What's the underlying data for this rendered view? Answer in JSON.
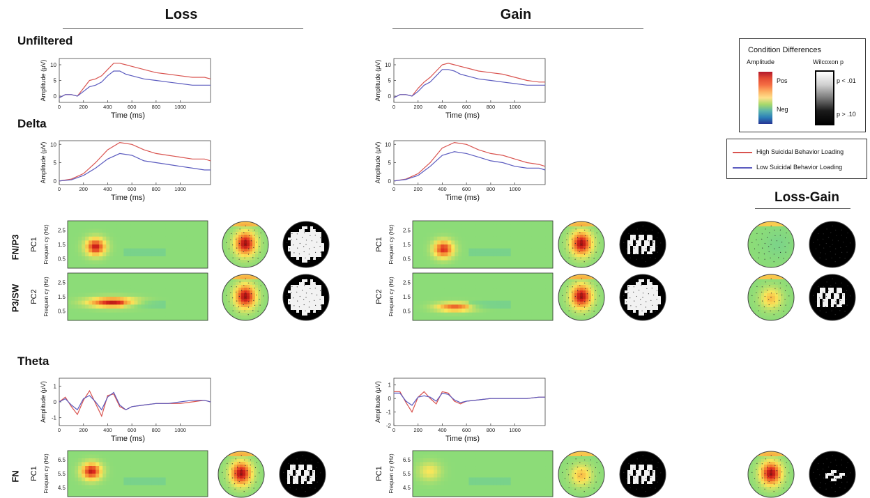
{
  "columns": {
    "loss": "Loss",
    "gain": "Gain",
    "loss_gain": "Loss-Gain"
  },
  "sections": {
    "unfiltered": "Unfiltered",
    "delta": "Delta",
    "theta": "Theta"
  },
  "row_labels": {
    "fn_p3": "FN/P3",
    "p3_sw": "P3/SW",
    "fn": "FN",
    "pc1": "PC1",
    "pc2": "PC2"
  },
  "axis": {
    "amplitude": "Amplitude (μV)",
    "time": "Time (ms)",
    "frequency": "Frequen cy (Hz)",
    "time_ticks": [
      "0",
      "200",
      "400",
      "600",
      "800",
      "1000"
    ],
    "amp_ticks_broad": [
      "0",
      "5",
      "10"
    ],
    "amp_ticks_theta": [
      "-1",
      "0",
      "1"
    ],
    "amp_ticks_theta_gain": [
      "-2",
      "-1",
      "0",
      "1"
    ],
    "freq_ticks_delta": [
      "2.5",
      "1.5",
      "0.5"
    ],
    "freq_ticks_theta": [
      "6.5",
      "5.5",
      "4.5"
    ]
  },
  "legend_colorbar": {
    "title": "Condition Differences",
    "amplitude": "Amplitude",
    "wilcoxon": "Wilcoxon p",
    "pos": "Pos",
    "neg": "Neg",
    "p_low": "p < .01",
    "p_high": "p > .10"
  },
  "legend_lines": {
    "high": "High Suicidal Behavior Loading",
    "low": "Low Suicidal Behavior Loading",
    "high_color": "#d9534f",
    "low_color": "#5b5bbf"
  },
  "chart_data": [
    {
      "id": "unfiltered-loss",
      "type": "line",
      "xlabel": "Time (ms)",
      "ylabel": "Amplitude (μV)",
      "xlim": [
        0,
        1250
      ],
      "ylim": [
        -2,
        12
      ],
      "series": [
        {
          "name": "High Suicidal Behavior Loading",
          "x": [
            0,
            50,
            100,
            150,
            200,
            250,
            300,
            350,
            400,
            450,
            500,
            550,
            600,
            700,
            800,
            900,
            1000,
            1100,
            1200,
            1250
          ],
          "y": [
            -0.5,
            0.5,
            0.5,
            0.0,
            2.5,
            5,
            5.5,
            6.5,
            8.5,
            10.5,
            10.5,
            10,
            9.5,
            8.5,
            7.5,
            7,
            6.5,
            6,
            6,
            5.5
          ]
        },
        {
          "name": "Low Suicidal Behavior Loading",
          "x": [
            0,
            50,
            100,
            150,
            200,
            250,
            300,
            350,
            400,
            450,
            500,
            550,
            600,
            700,
            800,
            900,
            1000,
            1100,
            1200,
            1250
          ],
          "y": [
            -0.5,
            0.5,
            0.5,
            0.0,
            1.5,
            3,
            3.5,
            4.5,
            6.5,
            8,
            8,
            7,
            6.5,
            5.5,
            5,
            4.5,
            4,
            3.5,
            3.5,
            3.5
          ]
        }
      ]
    },
    {
      "id": "unfiltered-gain",
      "type": "line",
      "xlabel": "Time (ms)",
      "ylabel": "Amplitude (μV)",
      "xlim": [
        0,
        1250
      ],
      "ylim": [
        -2,
        12
      ],
      "series": [
        {
          "name": "High Suicidal Behavior Loading",
          "x": [
            0,
            50,
            100,
            150,
            200,
            250,
            300,
            350,
            400,
            450,
            500,
            550,
            600,
            700,
            800,
            900,
            1000,
            1100,
            1200,
            1250
          ],
          "y": [
            -0.5,
            0.5,
            0.5,
            0,
            2.5,
            4.5,
            6,
            8,
            10,
            10.5,
            10,
            9.5,
            9,
            8,
            7.5,
            7,
            6,
            5,
            4.5,
            4.5
          ]
        },
        {
          "name": "Low Suicidal Behavior Loading",
          "x": [
            0,
            50,
            100,
            150,
            200,
            250,
            300,
            350,
            400,
            450,
            500,
            550,
            600,
            700,
            800,
            900,
            1000,
            1100,
            1200,
            1250
          ],
          "y": [
            -0.5,
            0.5,
            0.5,
            0,
            1.5,
            3.5,
            4.5,
            6.5,
            8.5,
            8.5,
            8,
            7,
            6.5,
            5.5,
            5,
            4.5,
            4,
            3.5,
            3.5,
            3.5
          ]
        }
      ]
    },
    {
      "id": "delta-loss",
      "type": "line",
      "xlabel": "Time (ms)",
      "ylabel": "Amplitude (μV)",
      "xlim": [
        0,
        1250
      ],
      "ylim": [
        -1,
        11
      ],
      "series": [
        {
          "name": "High Suicidal Behavior Loading",
          "x": [
            0,
            100,
            200,
            300,
            400,
            500,
            600,
            700,
            800,
            900,
            1000,
            1100,
            1200,
            1250
          ],
          "y": [
            0,
            0.5,
            2,
            5,
            8.5,
            10.5,
            10,
            8.5,
            7.5,
            7,
            6.5,
            6,
            6,
            5.5
          ]
        },
        {
          "name": "Low Suicidal Behavior Loading",
          "x": [
            0,
            100,
            200,
            300,
            400,
            500,
            600,
            700,
            800,
            900,
            1000,
            1100,
            1200,
            1250
          ],
          "y": [
            0,
            0.3,
            1.5,
            3.5,
            6,
            7.5,
            7,
            5.5,
            5,
            4.5,
            4,
            3.5,
            3,
            3
          ]
        }
      ]
    },
    {
      "id": "delta-gain",
      "type": "line",
      "xlabel": "Time (ms)",
      "ylabel": "Amplitude (μV)",
      "xlim": [
        0,
        1250
      ],
      "ylim": [
        -1,
        11
      ],
      "series": [
        {
          "name": "High Suicidal Behavior Loading",
          "x": [
            0,
            100,
            200,
            300,
            400,
            500,
            600,
            700,
            800,
            900,
            1000,
            1100,
            1200,
            1250
          ],
          "y": [
            0,
            0.5,
            2,
            5,
            9,
            10.5,
            10,
            8.5,
            7.5,
            7,
            6,
            5,
            4.5,
            4
          ]
        },
        {
          "name": "Low Suicidal Behavior Loading",
          "x": [
            0,
            100,
            200,
            300,
            400,
            500,
            600,
            700,
            800,
            900,
            1000,
            1100,
            1200,
            1250
          ],
          "y": [
            0,
            0.4,
            1.5,
            4,
            7,
            8,
            7.5,
            6.5,
            5.5,
            5,
            4,
            3.5,
            3.5,
            3
          ]
        }
      ]
    },
    {
      "id": "theta-loss",
      "type": "line",
      "xlabel": "Time (ms)",
      "ylabel": "Amplitude (μV)",
      "xlim": [
        0,
        1250
      ],
      "ylim": [
        -1.5,
        1.5
      ],
      "series": [
        {
          "name": "High Suicidal Behavior Loading",
          "x": [
            0,
            50,
            100,
            150,
            200,
            250,
            300,
            350,
            400,
            450,
            500,
            550,
            600,
            700,
            800,
            900,
            1000,
            1100,
            1200,
            1250
          ],
          "y": [
            0,
            0.3,
            -0.3,
            -0.8,
            0.1,
            0.7,
            -0.1,
            -0.9,
            0.4,
            0.5,
            -0.3,
            -0.5,
            -0.3,
            -0.2,
            -0.1,
            -0.1,
            -0.1,
            0,
            0.1,
            0
          ]
        },
        {
          "name": "Low Suicidal Behavior Loading",
          "x": [
            0,
            50,
            100,
            150,
            200,
            250,
            300,
            350,
            400,
            450,
            500,
            550,
            600,
            700,
            800,
            900,
            1000,
            1100,
            1200,
            1250
          ],
          "y": [
            0,
            0.2,
            -0.2,
            -0.5,
            0.2,
            0.4,
            0,
            -0.5,
            0.3,
            0.6,
            -0.2,
            -0.5,
            -0.3,
            -0.2,
            -0.1,
            -0.1,
            0,
            0.1,
            0.1,
            0
          ]
        }
      ]
    },
    {
      "id": "theta-gain",
      "type": "line",
      "xlabel": "Time (ms)",
      "ylabel": "Amplitude (μV)",
      "xlim": [
        0,
        1250
      ],
      "ylim": [
        -2,
        1.5
      ],
      "series": [
        {
          "name": "High Suicidal Behavior Loading",
          "x": [
            0,
            50,
            100,
            150,
            200,
            250,
            300,
            350,
            400,
            450,
            500,
            550,
            600,
            700,
            800,
            900,
            1000,
            1100,
            1200,
            1250
          ],
          "y": [
            0.5,
            0.5,
            -0.3,
            -1,
            0.1,
            0.5,
            0,
            -0.4,
            0.5,
            0.4,
            -0.2,
            -0.4,
            -0.2,
            -0.1,
            0,
            0,
            0,
            0,
            0.1,
            0.1
          ]
        },
        {
          "name": "Low Suicidal Behavior Loading",
          "x": [
            0,
            50,
            100,
            150,
            200,
            250,
            300,
            350,
            400,
            450,
            500,
            550,
            600,
            700,
            800,
            900,
            1000,
            1100,
            1200,
            1250
          ],
          "y": [
            0.4,
            0.4,
            -0.2,
            -0.5,
            0.1,
            0.2,
            0.1,
            -0.2,
            0.4,
            0.3,
            -0.1,
            -0.3,
            -0.2,
            -0.1,
            0,
            0,
            0,
            0,
            0.1,
            0.1
          ]
        }
      ]
    }
  ]
}
